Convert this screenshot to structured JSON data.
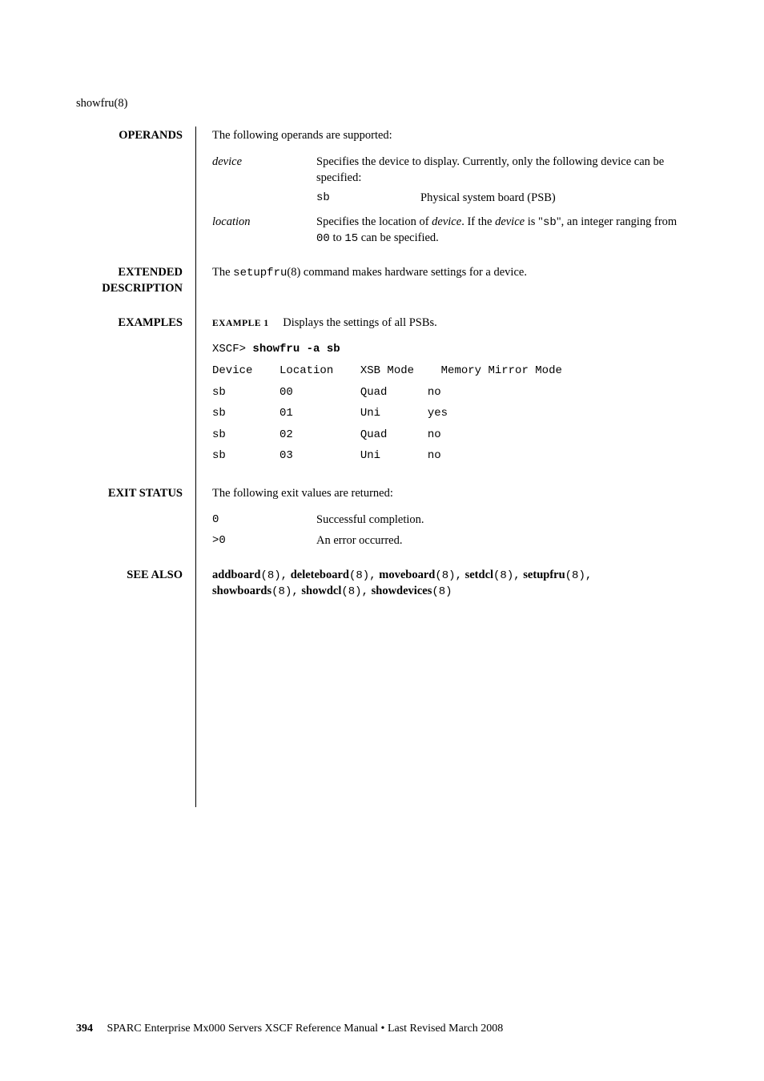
{
  "header_cmd": "showfru(8)",
  "operands": {
    "label": "OPERANDS",
    "intro": "The following operands are supported:",
    "device_key": "device",
    "device_desc": "Specifies the device to display. Currently, only the following device can be specified:",
    "sb_code": "sb",
    "sb_desc": "Physical system board (PSB)",
    "location_key": "location",
    "location_desc_pre": "Specifies the location of ",
    "location_desc_mid1": "device",
    "location_desc_mid2": ". If the ",
    "location_desc_mid3": "device",
    "location_desc_mid4": " is \"",
    "location_desc_sb": "sb",
    "location_desc_mid5": "\", an integer ranging from ",
    "location_desc_00": "00",
    "location_desc_mid6": " to ",
    "location_desc_15": "15",
    "location_desc_end": " can be specified."
  },
  "extended": {
    "label1": "EXTENDED",
    "label2": "DESCRIPTION",
    "desc_pre": "The ",
    "desc_cmd": "setupfru",
    "desc_post": "(8) command makes hardware settings for a device."
  },
  "examples": {
    "label": "EXAMPLES",
    "ex_label": "EXAMPLE 1",
    "ex_title": "Displays the settings of all PSBs.",
    "line0_prompt": "XSCF> ",
    "line0_cmd": "showfru -a sb",
    "hdr_device": "Device",
    "hdr_location": "Location",
    "hdr_xsb": "XSB Mode",
    "hdr_mem": "Memory Mirror Mode",
    "rows": [
      {
        "d": "sb",
        "l": "00",
        "x": "Quad",
        "m": "no"
      },
      {
        "d": "sb",
        "l": "01",
        "x": "Uni",
        "m": "yes"
      },
      {
        "d": "sb",
        "l": "02",
        "x": "Quad",
        "m": "no"
      },
      {
        "d": "sb",
        "l": "03",
        "x": "Uni",
        "m": "no"
      }
    ]
  },
  "exit": {
    "label": "EXIT STATUS",
    "intro": "The following exit values are returned:",
    "r0_key": "0",
    "r0_desc": "Successful completion.",
    "r1_key": ">0",
    "r1_desc": "An error occurred."
  },
  "seealso": {
    "label": "SEE ALSO",
    "items": [
      "addboard",
      "deleteboard",
      "moveboard",
      "setdcl",
      "setupfru",
      "showboards",
      "showdcl",
      "showdevices"
    ],
    "sec": "(8)"
  },
  "footer": {
    "page": "394",
    "text": "SPARC Enterprise Mx000 Servers XSCF Reference Manual • Last Revised March 2008"
  }
}
